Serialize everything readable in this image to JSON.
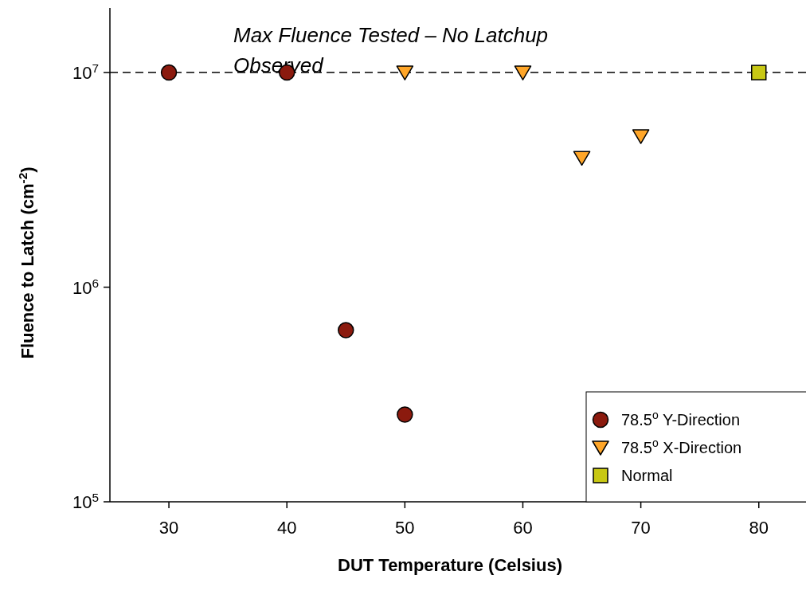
{
  "chart_data": {
    "type": "scatter",
    "xlabel": "DUT Temperature (Celsius)",
    "ylabel": "Fluence to Latch (cm$^{-2}$)",
    "xlim": [
      25,
      84
    ],
    "xticks": [
      30,
      40,
      50,
      60,
      70,
      80
    ],
    "ylim": [
      100000,
      20000000
    ],
    "yticks": [
      {
        "value": 100000,
        "label": "10$^{5}$"
      },
      {
        "value": 1000000,
        "label": "10$^{6}$"
      },
      {
        "value": 10000000,
        "label": "10$^{7}$"
      }
    ],
    "log": "y",
    "grid": false,
    "legend": "bottom right",
    "ref_lines": [
      {
        "axis": "y",
        "value": 10000000,
        "label": "Max Fluence Tested – No Latchup Observed",
        "color": "#000000",
        "line_style": "dashed"
      }
    ],
    "series": [
      {
        "name": "78.5$^{o}$ Y-Direction",
        "color": "#8b1a0e",
        "marker": "circle",
        "x": [
          30,
          40,
          45,
          50
        ],
        "values": [
          10000000,
          10000000,
          630000,
          255000
        ]
      },
      {
        "name": "78.5$^{o}$ X-Direction",
        "color": "#ffa629",
        "marker": "triangle",
        "x": [
          50,
          60,
          65,
          70
        ],
        "values": [
          10000000,
          10000000,
          4000000,
          5050000
        ]
      },
      {
        "name": "Normal",
        "color": "#c8c814",
        "marker": "square",
        "x": [
          80
        ],
        "values": [
          10000000
        ]
      }
    ]
  }
}
